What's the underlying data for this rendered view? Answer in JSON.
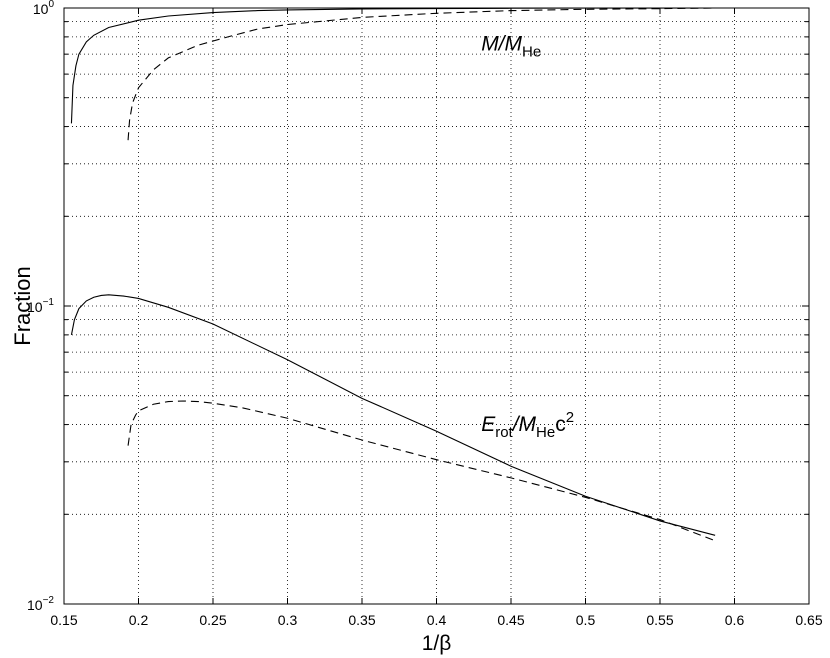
{
  "chart_data": {
    "type": "line",
    "title": "",
    "xlabel": "1/β",
    "ylabel": "Fraction",
    "xlim": [
      0.15,
      0.65
    ],
    "ylim": [
      0.01,
      1
    ],
    "yscale": "log",
    "grid": "dotted",
    "x_ticks": [
      "0.15",
      "0.2",
      "0.25",
      "0.3",
      "0.35",
      "0.4",
      "0.45",
      "0.5",
      "0.55",
      "0.6",
      "0.65"
    ],
    "x_tick_values": [
      0.15,
      0.2,
      0.25,
      0.3,
      0.35,
      0.4,
      0.45,
      0.5,
      0.55,
      0.6,
      0.65
    ],
    "y_ticks": [
      {
        "value": 0.01,
        "base": "10",
        "exp": "−2"
      },
      {
        "value": 0.1,
        "base": "10",
        "exp": "−1"
      },
      {
        "value": 1,
        "base": "10",
        "exp": "0"
      }
    ],
    "series": [
      {
        "style": "solid",
        "x": [
          0.155,
          0.156,
          0.158,
          0.16,
          0.165,
          0.17,
          0.18,
          0.2,
          0.22,
          0.25,
          0.28,
          0.3,
          0.35,
          0.4,
          0.45,
          0.5,
          0.55,
          0.587
        ],
        "y": [
          0.41,
          0.55,
          0.64,
          0.7,
          0.77,
          0.81,
          0.86,
          0.91,
          0.94,
          0.965,
          0.98,
          0.985,
          0.993,
          0.996,
          0.998,
          0.999,
          0.999,
          1.0
        ]
      },
      {
        "style": "dashed",
        "x": [
          0.193,
          0.194,
          0.196,
          0.2,
          0.21,
          0.22,
          0.24,
          0.26,
          0.28,
          0.3,
          0.35,
          0.4,
          0.45,
          0.5,
          0.55,
          0.587
        ],
        "y": [
          0.36,
          0.42,
          0.48,
          0.54,
          0.62,
          0.68,
          0.75,
          0.8,
          0.85,
          0.88,
          0.93,
          0.96,
          0.98,
          0.99,
          0.995,
          1.0
        ]
      },
      {
        "style": "solid",
        "x": [
          0.155,
          0.157,
          0.16,
          0.165,
          0.17,
          0.175,
          0.18,
          0.19,
          0.2,
          0.22,
          0.25,
          0.3,
          0.35,
          0.4,
          0.45,
          0.5,
          0.55,
          0.587
        ],
        "y": [
          0.08,
          0.09,
          0.098,
          0.104,
          0.107,
          0.1085,
          0.109,
          0.108,
          0.106,
          0.099,
          0.087,
          0.066,
          0.049,
          0.038,
          0.029,
          0.023,
          0.019,
          0.017
        ]
      },
      {
        "style": "dashed",
        "x": [
          0.193,
          0.195,
          0.198,
          0.2,
          0.21,
          0.22,
          0.23,
          0.24,
          0.25,
          0.27,
          0.3,
          0.35,
          0.4,
          0.45,
          0.5,
          0.55,
          0.587
        ],
        "y": [
          0.034,
          0.04,
          0.043,
          0.0445,
          0.0468,
          0.0478,
          0.048,
          0.0478,
          0.0472,
          0.0455,
          0.042,
          0.0355,
          0.0305,
          0.0265,
          0.0228,
          0.0192,
          0.0163
        ]
      }
    ],
    "annotations": [
      {
        "x": 0.43,
        "y": 0.72,
        "main": "M/M",
        "sub": "He",
        "tail": "",
        "sup": ""
      },
      {
        "x": 0.43,
        "y": 0.038,
        "main": "E",
        "sub": "rot",
        "tail": "/M",
        "sub2": "He",
        "tail2": "c",
        "sup": "2"
      }
    ]
  }
}
